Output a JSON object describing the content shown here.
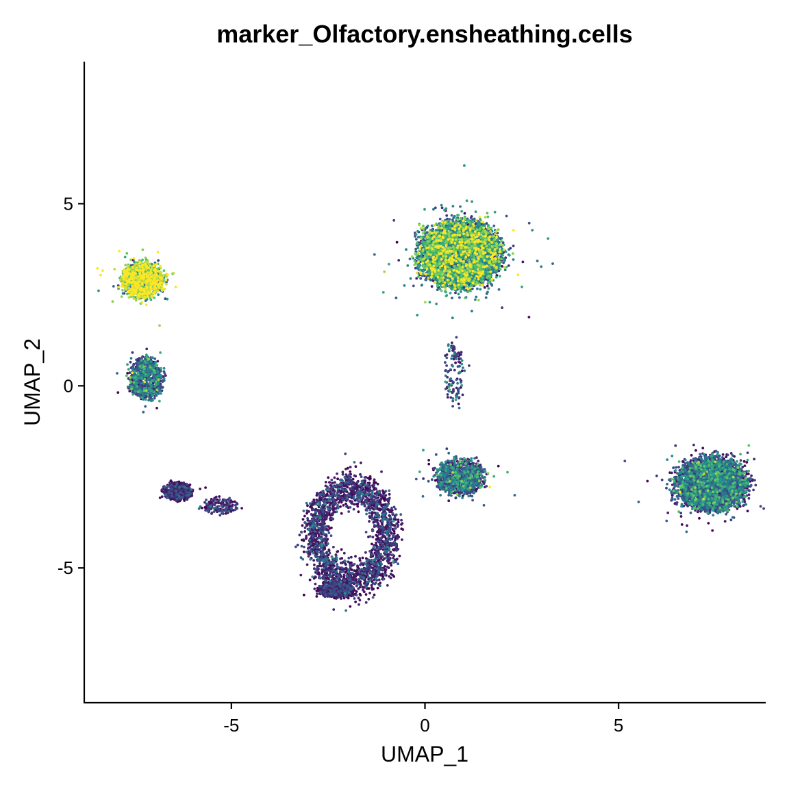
{
  "chart_data": {
    "type": "scatter",
    "title": "marker_Olfactory.ensheathing.cells",
    "xlabel": "UMAP_1",
    "ylabel": "UMAP_2",
    "xlim": [
      -8.8,
      8.8
    ],
    "ylim": [
      -8.7,
      8.9
    ],
    "x_ticks": [
      -5,
      0,
      5
    ],
    "y_ticks": [
      -5,
      0,
      5
    ],
    "x_tick_labels": [
      "-5",
      "0",
      "5"
    ],
    "y_tick_labels": [
      "-5",
      "0",
      "5"
    ],
    "grid": false,
    "legend": "none",
    "colormap": [
      "#440154",
      "#3b528b",
      "#21908d",
      "#5dc963",
      "#fde725"
    ],
    "clusters": [
      {
        "center": [
          0.9,
          3.6
        ],
        "spread": [
          1.7,
          1.5
        ],
        "shape": "blob",
        "n": 4200,
        "mean_score": 0.55,
        "score_sd": 0.3
      },
      {
        "center": [
          -7.3,
          2.9
        ],
        "spread": [
          0.9,
          0.8
        ],
        "shape": "blob",
        "n": 1100,
        "mean_score": 0.88,
        "score_sd": 0.15
      },
      {
        "center": [
          -7.2,
          0.2
        ],
        "spread": [
          0.7,
          0.9
        ],
        "shape": "blob",
        "n": 800,
        "mean_score": 0.3,
        "score_sd": 0.2
      },
      {
        "center": [
          -6.4,
          -2.9
        ],
        "spread": [
          0.6,
          0.4
        ],
        "shape": "blob",
        "n": 450,
        "mean_score": 0.08,
        "score_sd": 0.12
      },
      {
        "center": [
          -5.3,
          -3.3
        ],
        "spread": [
          0.8,
          0.35
        ],
        "shape": "blob",
        "n": 160,
        "mean_score": 0.12,
        "score_sd": 0.12
      },
      {
        "center": [
          7.4,
          -2.7
        ],
        "spread": [
          1.5,
          1.2
        ],
        "shape": "blob",
        "n": 3000,
        "mean_score": 0.3,
        "score_sd": 0.22
      },
      {
        "center": [
          0.9,
          -2.5
        ],
        "spread": [
          1.0,
          0.8
        ],
        "shape": "blob",
        "n": 900,
        "mean_score": 0.3,
        "score_sd": 0.22
      },
      {
        "center": [
          -1.9,
          -4.1
        ],
        "spread": [
          1.3,
          1.8
        ],
        "shape": "ring",
        "n": 2200,
        "mean_score": 0.12,
        "score_sd": 0.15
      },
      {
        "center": [
          -2.3,
          -5.6
        ],
        "spread": [
          0.7,
          0.35
        ],
        "shape": "blob",
        "n": 500,
        "mean_score": 0.08,
        "score_sd": 0.1
      },
      {
        "center": [
          0.75,
          0.3
        ],
        "spread": [
          0.4,
          1.5
        ],
        "shape": "blob",
        "n": 120,
        "mean_score": 0.25,
        "score_sd": 0.2
      }
    ]
  }
}
